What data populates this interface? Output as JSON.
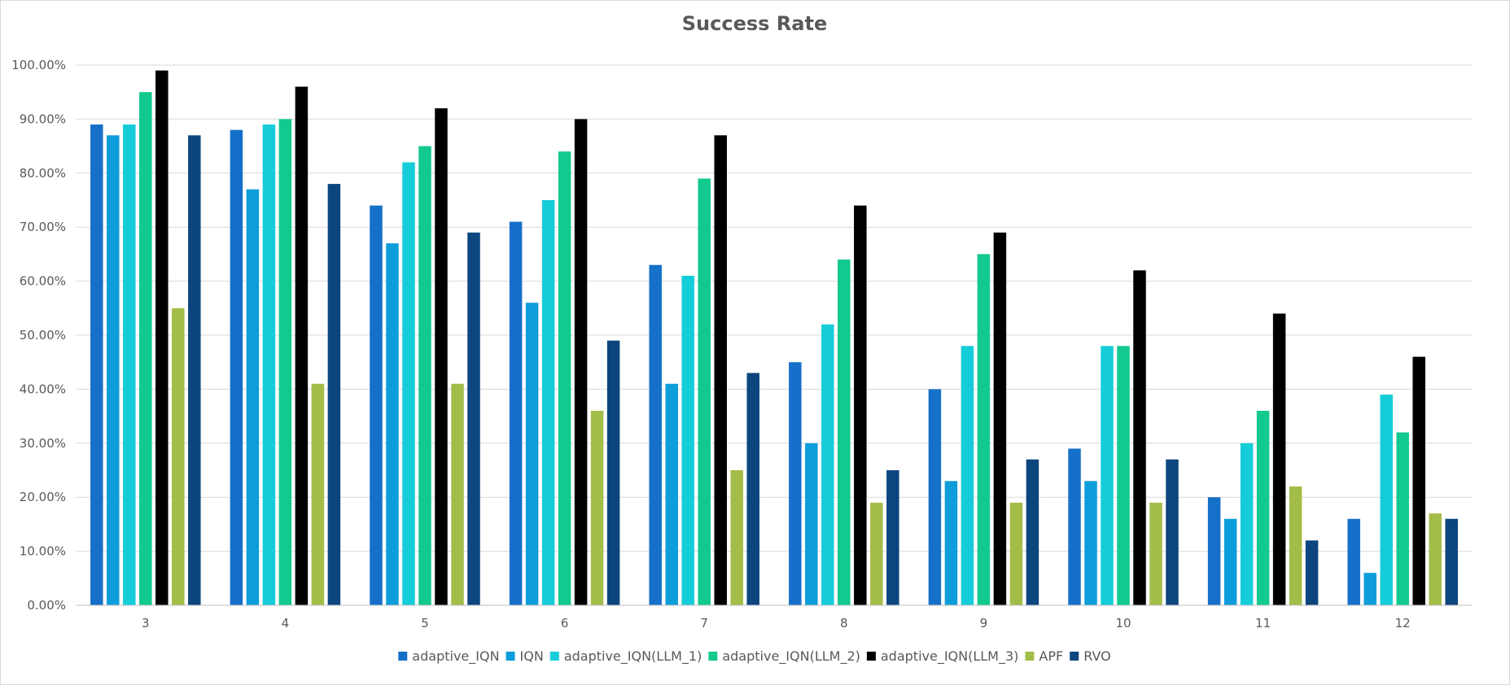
{
  "chart_data": {
    "type": "bar",
    "title": "Success Rate",
    "xlabel": "",
    "ylabel": "",
    "ylim": [
      0,
      100
    ],
    "y_ticks": [
      "0.00%",
      "10.00%",
      "20.00%",
      "30.00%",
      "40.00%",
      "50.00%",
      "60.00%",
      "70.00%",
      "80.00%",
      "90.00%",
      "100.00%"
    ],
    "grid": true,
    "legend_position": "bottom",
    "categories": [
      "3",
      "4",
      "5",
      "6",
      "7",
      "8",
      "9",
      "10",
      "11",
      "12"
    ],
    "series": [
      {
        "name": "adaptive_IQN",
        "color": "#1670c9",
        "values": [
          89,
          88,
          74,
          71,
          63,
          45,
          40,
          29,
          20,
          16
        ]
      },
      {
        "name": "IQN",
        "color": "#0d9ddb",
        "values": [
          87,
          77,
          67,
          56,
          41,
          30,
          23,
          23,
          16,
          6
        ]
      },
      {
        "name": "adaptive_IQN(LLM_1)",
        "color": "#15cdd9",
        "values": [
          89,
          89,
          82,
          75,
          61,
          52,
          48,
          48,
          30,
          39
        ]
      },
      {
        "name": "adaptive_IQN(LLM_2)",
        "color": "#12c98f",
        "values": [
          95,
          90,
          85,
          84,
          79,
          64,
          65,
          48,
          36,
          32
        ]
      },
      {
        "name": "adaptive_IQN(LLM_3)",
        "color": "#000000",
        "values": [
          99,
          96,
          92,
          90,
          87,
          74,
          69,
          62,
          54,
          46
        ]
      },
      {
        "name": "APF",
        "color": "#a3bd49",
        "values": [
          55,
          41,
          41,
          36,
          25,
          19,
          19,
          19,
          22,
          17
        ]
      },
      {
        "name": "RVO",
        "color": "#0d467f",
        "values": [
          87,
          78,
          69,
          49,
          43,
          25,
          27,
          27,
          12,
          16
        ]
      }
    ]
  }
}
